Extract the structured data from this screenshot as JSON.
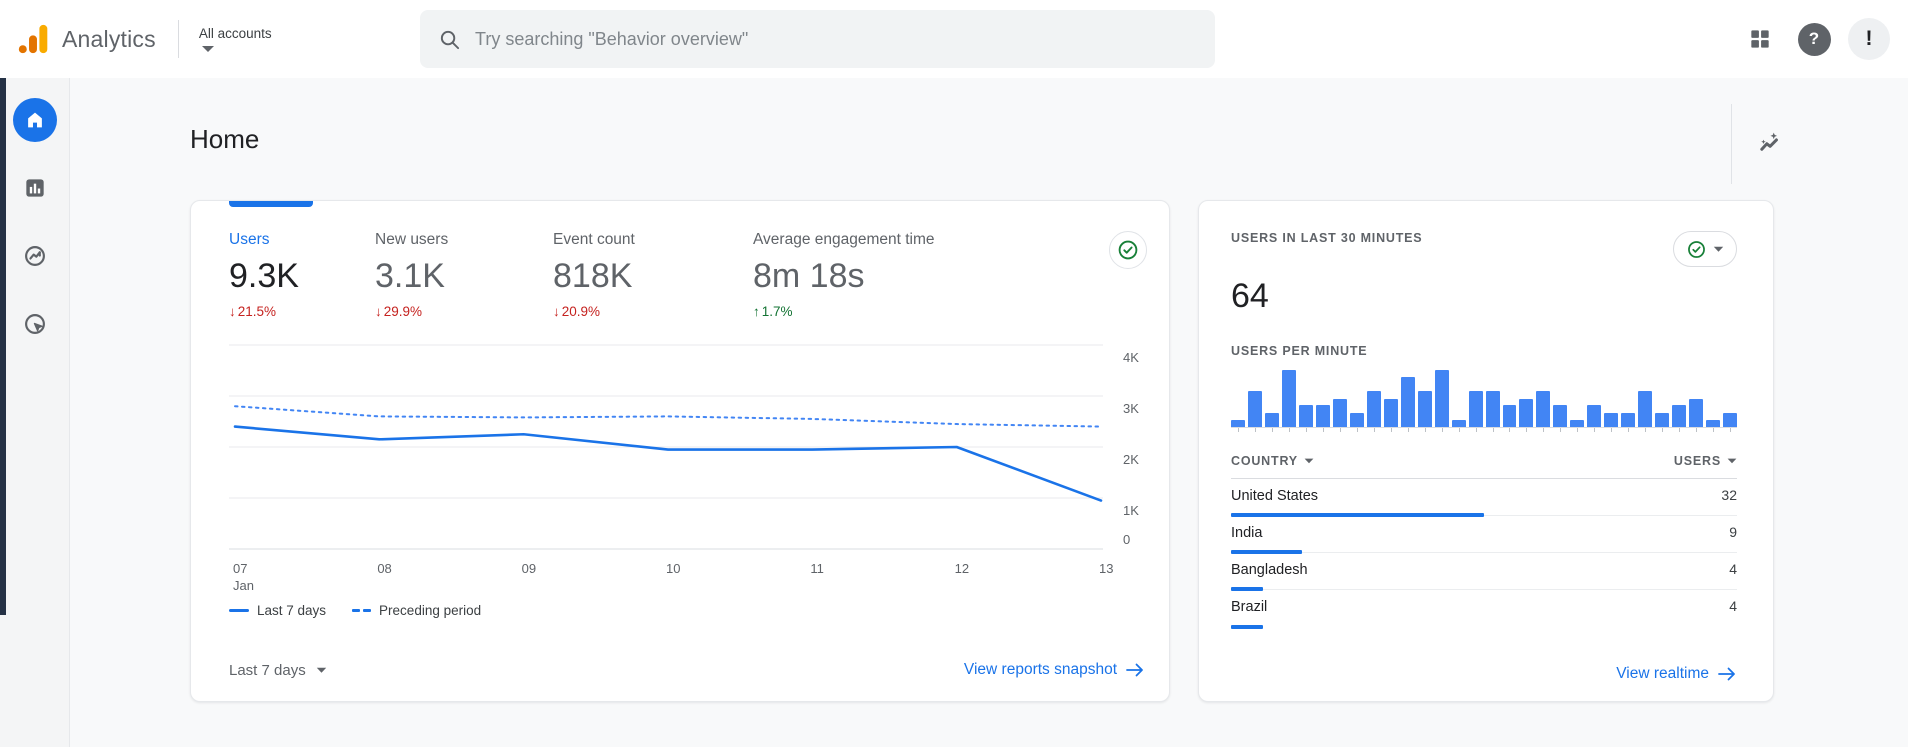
{
  "topbar": {
    "app_name": "Analytics",
    "account_switcher": "All accounts",
    "search_placeholder": "Try searching \"Behavior overview\"",
    "avatar_text": "!"
  },
  "sidebar": {
    "items": [
      {
        "id": "home",
        "active": true
      },
      {
        "id": "reports",
        "active": false
      },
      {
        "id": "explore",
        "active": false
      },
      {
        "id": "advertising",
        "active": false
      }
    ]
  },
  "page": {
    "title": "Home"
  },
  "overview_card": {
    "metrics": [
      {
        "label": "Users",
        "value": "9.3K",
        "delta": "21.5%",
        "direction": "down",
        "active": true
      },
      {
        "label": "New users",
        "value": "3.1K",
        "delta": "29.9%",
        "direction": "down",
        "active": false
      },
      {
        "label": "Event count",
        "value": "818K",
        "delta": "20.9%",
        "direction": "down",
        "active": false
      },
      {
        "label": "Average engagement time",
        "value": "8m 18s",
        "delta": "1.7%",
        "direction": "up",
        "active": false
      }
    ],
    "legend": [
      {
        "label": "Last 7 days",
        "style": "solid"
      },
      {
        "label": "Preceding period",
        "style": "dashed"
      }
    ],
    "range_label": "Last 7 days",
    "link_label": "View reports snapshot"
  },
  "realtime_card": {
    "title": "USERS IN LAST 30 MINUTES",
    "users_count": "64",
    "per_minute_label": "USERS PER MINUTE",
    "country_header": "COUNTRY",
    "users_header": "USERS",
    "total_users": 64,
    "countries": [
      {
        "name": "United States",
        "users": 32
      },
      {
        "name": "India",
        "users": 9
      },
      {
        "name": "Bangladesh",
        "users": 4
      },
      {
        "name": "Brazil",
        "users": 4
      }
    ],
    "link_label": "View realtime"
  },
  "chart_data": [
    {
      "type": "line",
      "title": "Users by day",
      "x_labels": [
        "07",
        "08",
        "09",
        "10",
        "11",
        "12",
        "13"
      ],
      "x_sublabel": "Jan",
      "series": [
        {
          "name": "Last 7 days",
          "style": "solid",
          "values": [
            2400,
            2150,
            2250,
            1950,
            1950,
            2000,
            950
          ]
        },
        {
          "name": "Preceding period",
          "style": "dashed",
          "values": [
            2800,
            2600,
            2580,
            2600,
            2550,
            2450,
            2400
          ]
        }
      ],
      "ylim": [
        0,
        4000
      ],
      "yticks": [
        {
          "v": 0,
          "label": "0"
        },
        {
          "v": 1000,
          "label": "1K"
        },
        {
          "v": 2000,
          "label": "2K"
        },
        {
          "v": 3000,
          "label": "3K"
        },
        {
          "v": 4000,
          "label": "4K"
        }
      ],
      "grid": true,
      "legend_position": "bottom"
    },
    {
      "type": "bar",
      "title": "Users per minute",
      "values": [
        1,
        5,
        2,
        8,
        3,
        3,
        4,
        2,
        5,
        4,
        7,
        5,
        8,
        1,
        5,
        5,
        3,
        4,
        5,
        3,
        1,
        3,
        2,
        2,
        5,
        2,
        3,
        4,
        1,
        2
      ],
      "ylim": [
        0,
        8
      ]
    }
  ],
  "colors": {
    "accent": "#1a73e8",
    "bar_blue": "#4285f4",
    "negative": "#c5221f",
    "positive": "#137333",
    "logo_amber": "#f9ab00",
    "logo_orange": "#e37400",
    "grid_line": "#e8eaed",
    "axis_text": "#5f6368"
  }
}
